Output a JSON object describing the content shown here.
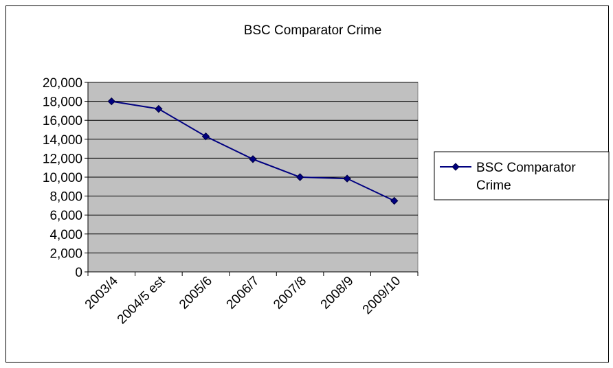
{
  "chart_data": {
    "type": "line",
    "title": "BSC Comparator Crime",
    "xlabel": "",
    "ylabel": "",
    "categories": [
      "2003/4",
      "2004/5 est",
      "2005/6",
      "2006/7",
      "2007/8",
      "2008/9",
      "2009/10"
    ],
    "series": [
      {
        "name": "BSC Comparator Crime",
        "values": [
          18000,
          17200,
          14300,
          11900,
          10000,
          9850,
          7500
        ],
        "color": "#000080",
        "marker": "diamond"
      }
    ],
    "ylim": [
      0,
      20000
    ],
    "yticks": [
      0,
      2000,
      4000,
      6000,
      8000,
      10000,
      12000,
      14000,
      16000,
      18000,
      20000
    ],
    "ytick_labels": [
      "0",
      "2,000",
      "4,000",
      "6,000",
      "8,000",
      "10,000",
      "12,000",
      "14,000",
      "16,000",
      "18,000",
      "20,000"
    ],
    "grid": true,
    "plot_background": "#c0c0c0",
    "legend": {
      "position": "right",
      "label_lines": [
        "BSC Comparator",
        "Crime"
      ]
    }
  }
}
